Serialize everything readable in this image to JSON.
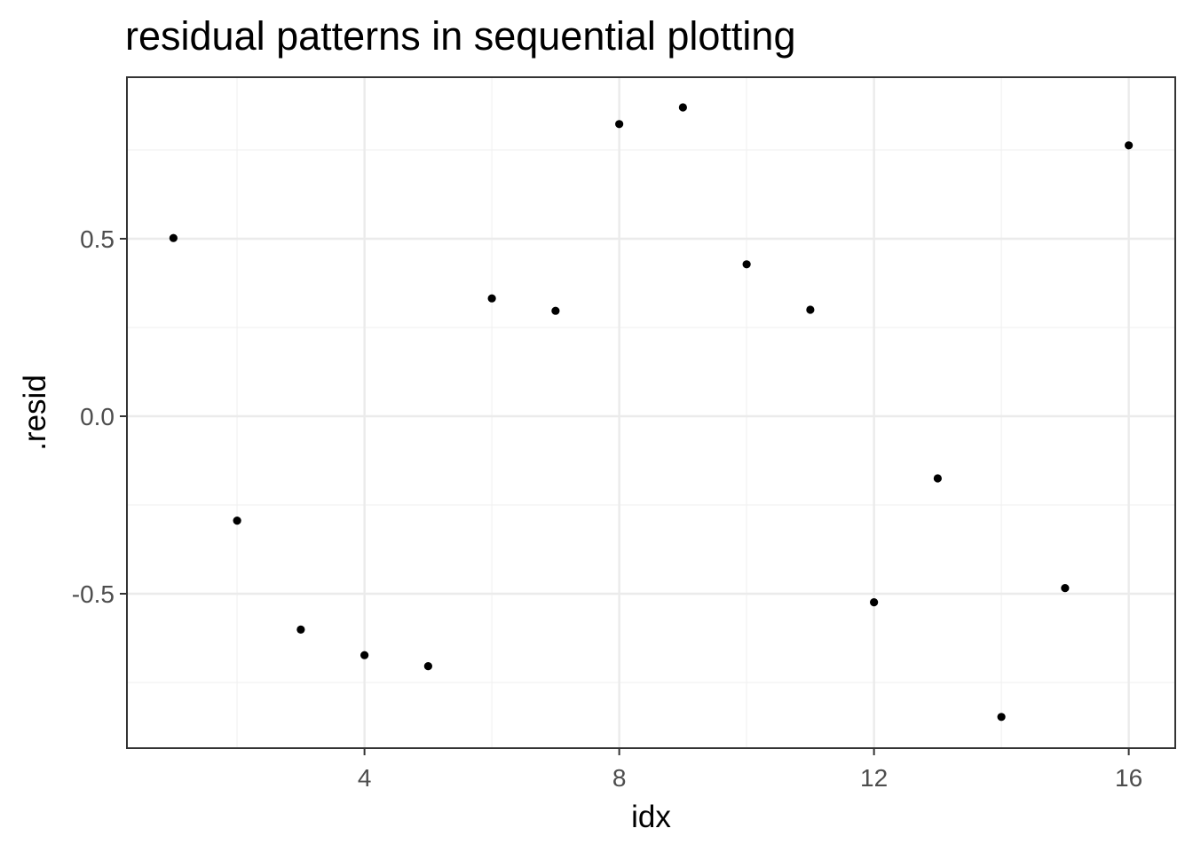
{
  "chart_data": {
    "type": "scatter",
    "title": "residual patterns in sequential plotting",
    "xlabel": "idx",
    "ylabel": ".resid",
    "xlim": [
      0.27,
      16.73
    ],
    "ylim": [
      -0.935,
      0.955
    ],
    "x_ticks": [
      4,
      8,
      12,
      16
    ],
    "x_minor_ticks": [
      2,
      6,
      10,
      14
    ],
    "y_ticks": [
      -0.5,
      0.0,
      0.5
    ],
    "y_tick_labels": [
      "-0.5",
      "0.0",
      "0.5"
    ],
    "y_minor_ticks": [
      -0.75,
      -0.25,
      0.25,
      0.75
    ],
    "grid": true,
    "point_color": "#000000",
    "x": [
      1,
      2,
      3,
      4,
      5,
      6,
      7,
      8,
      9,
      10,
      11,
      12,
      13,
      14,
      15,
      16
    ],
    "y": [
      0.502,
      -0.294,
      -0.601,
      -0.673,
      -0.704,
      0.332,
      0.297,
      0.823,
      0.87,
      0.428,
      0.3,
      -0.524,
      -0.175,
      -0.847,
      -0.484,
      0.763
    ]
  }
}
